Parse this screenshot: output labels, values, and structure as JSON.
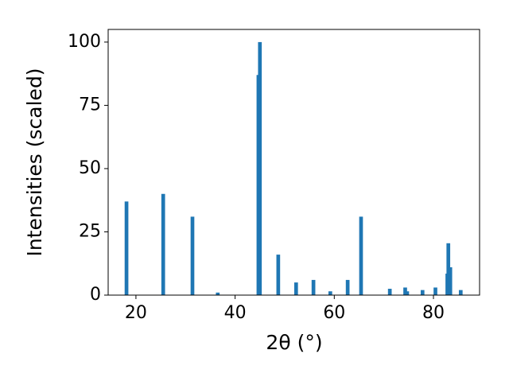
{
  "chart_data": {
    "type": "bar",
    "x_label": "2θ (°)",
    "y_label": "Intensities (scaled)",
    "x": [
      18.1,
      25.5,
      31.4,
      36.5,
      44.7,
      45.0,
      48.7,
      52.3,
      55.8,
      59.2,
      62.7,
      65.4,
      71.2,
      74.3,
      74.7,
      77.8,
      80.4,
      82.8,
      83.0,
      83.4,
      85.5
    ],
    "values": [
      37,
      40,
      31,
      1,
      87,
      100,
      16,
      5,
      6,
      1.5,
      6,
      31,
      2.5,
      3,
      1.5,
      2,
      3,
      8.5,
      20.5,
      11,
      2
    ],
    "color": "#1f77b4",
    "xlim": [
      14.4,
      89.3
    ],
    "ylim": [
      0,
      105
    ],
    "xticks": [
      20,
      40,
      60,
      80
    ],
    "yticks": [
      0,
      25,
      50,
      75,
      100
    ]
  }
}
